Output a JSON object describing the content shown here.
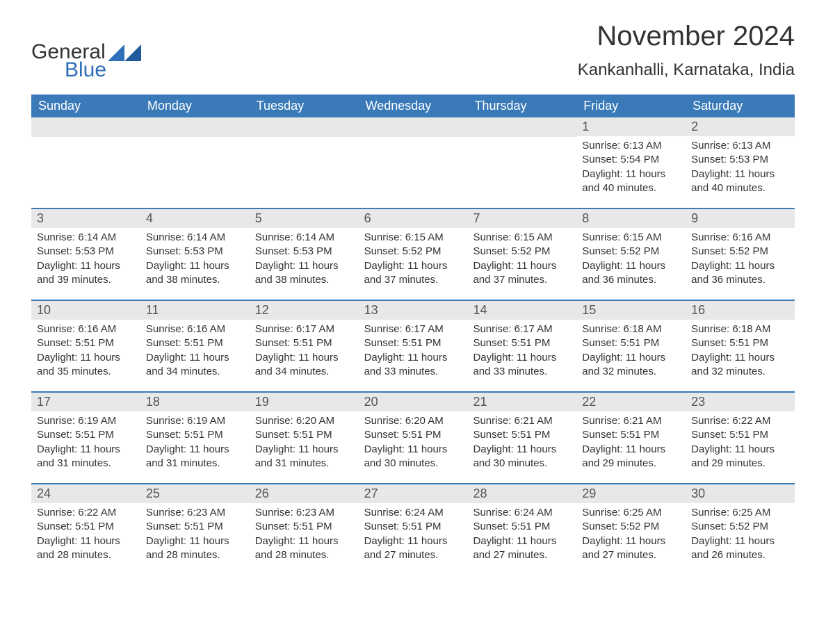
{
  "logo": {
    "general": "General",
    "blue": "Blue",
    "icon_color": "#2d6fb8"
  },
  "title": "November 2024",
  "location": "Kankanhalli, Karnataka, India",
  "colors": {
    "header_bg": "#3a7ab8",
    "header_text": "#ffffff",
    "daynum_bg": "#e8e8e8",
    "border": "#3a7ab8",
    "text": "#333333",
    "logo_blue": "#2d6fb8",
    "background": "#ffffff"
  },
  "fonts": {
    "title_size": 40,
    "location_size": 24,
    "weekday_size": 18,
    "daynum_size": 18,
    "body_size": 15
  },
  "weekdays": [
    "Sunday",
    "Monday",
    "Tuesday",
    "Wednesday",
    "Thursday",
    "Friday",
    "Saturday"
  ],
  "weeks": [
    [
      {
        "day": null
      },
      {
        "day": null
      },
      {
        "day": null
      },
      {
        "day": null
      },
      {
        "day": null
      },
      {
        "day": 1,
        "sunrise": "Sunrise: 6:13 AM",
        "sunset": "Sunset: 5:54 PM",
        "daylight1": "Daylight: 11 hours",
        "daylight2": "and 40 minutes."
      },
      {
        "day": 2,
        "sunrise": "Sunrise: 6:13 AM",
        "sunset": "Sunset: 5:53 PM",
        "daylight1": "Daylight: 11 hours",
        "daylight2": "and 40 minutes."
      }
    ],
    [
      {
        "day": 3,
        "sunrise": "Sunrise: 6:14 AM",
        "sunset": "Sunset: 5:53 PM",
        "daylight1": "Daylight: 11 hours",
        "daylight2": "and 39 minutes."
      },
      {
        "day": 4,
        "sunrise": "Sunrise: 6:14 AM",
        "sunset": "Sunset: 5:53 PM",
        "daylight1": "Daylight: 11 hours",
        "daylight2": "and 38 minutes."
      },
      {
        "day": 5,
        "sunrise": "Sunrise: 6:14 AM",
        "sunset": "Sunset: 5:53 PM",
        "daylight1": "Daylight: 11 hours",
        "daylight2": "and 38 minutes."
      },
      {
        "day": 6,
        "sunrise": "Sunrise: 6:15 AM",
        "sunset": "Sunset: 5:52 PM",
        "daylight1": "Daylight: 11 hours",
        "daylight2": "and 37 minutes."
      },
      {
        "day": 7,
        "sunrise": "Sunrise: 6:15 AM",
        "sunset": "Sunset: 5:52 PM",
        "daylight1": "Daylight: 11 hours",
        "daylight2": "and 37 minutes."
      },
      {
        "day": 8,
        "sunrise": "Sunrise: 6:15 AM",
        "sunset": "Sunset: 5:52 PM",
        "daylight1": "Daylight: 11 hours",
        "daylight2": "and 36 minutes."
      },
      {
        "day": 9,
        "sunrise": "Sunrise: 6:16 AM",
        "sunset": "Sunset: 5:52 PM",
        "daylight1": "Daylight: 11 hours",
        "daylight2": "and 36 minutes."
      }
    ],
    [
      {
        "day": 10,
        "sunrise": "Sunrise: 6:16 AM",
        "sunset": "Sunset: 5:51 PM",
        "daylight1": "Daylight: 11 hours",
        "daylight2": "and 35 minutes."
      },
      {
        "day": 11,
        "sunrise": "Sunrise: 6:16 AM",
        "sunset": "Sunset: 5:51 PM",
        "daylight1": "Daylight: 11 hours",
        "daylight2": "and 34 minutes."
      },
      {
        "day": 12,
        "sunrise": "Sunrise: 6:17 AM",
        "sunset": "Sunset: 5:51 PM",
        "daylight1": "Daylight: 11 hours",
        "daylight2": "and 34 minutes."
      },
      {
        "day": 13,
        "sunrise": "Sunrise: 6:17 AM",
        "sunset": "Sunset: 5:51 PM",
        "daylight1": "Daylight: 11 hours",
        "daylight2": "and 33 minutes."
      },
      {
        "day": 14,
        "sunrise": "Sunrise: 6:17 AM",
        "sunset": "Sunset: 5:51 PM",
        "daylight1": "Daylight: 11 hours",
        "daylight2": "and 33 minutes."
      },
      {
        "day": 15,
        "sunrise": "Sunrise: 6:18 AM",
        "sunset": "Sunset: 5:51 PM",
        "daylight1": "Daylight: 11 hours",
        "daylight2": "and 32 minutes."
      },
      {
        "day": 16,
        "sunrise": "Sunrise: 6:18 AM",
        "sunset": "Sunset: 5:51 PM",
        "daylight1": "Daylight: 11 hours",
        "daylight2": "and 32 minutes."
      }
    ],
    [
      {
        "day": 17,
        "sunrise": "Sunrise: 6:19 AM",
        "sunset": "Sunset: 5:51 PM",
        "daylight1": "Daylight: 11 hours",
        "daylight2": "and 31 minutes."
      },
      {
        "day": 18,
        "sunrise": "Sunrise: 6:19 AM",
        "sunset": "Sunset: 5:51 PM",
        "daylight1": "Daylight: 11 hours",
        "daylight2": "and 31 minutes."
      },
      {
        "day": 19,
        "sunrise": "Sunrise: 6:20 AM",
        "sunset": "Sunset: 5:51 PM",
        "daylight1": "Daylight: 11 hours",
        "daylight2": "and 31 minutes."
      },
      {
        "day": 20,
        "sunrise": "Sunrise: 6:20 AM",
        "sunset": "Sunset: 5:51 PM",
        "daylight1": "Daylight: 11 hours",
        "daylight2": "and 30 minutes."
      },
      {
        "day": 21,
        "sunrise": "Sunrise: 6:21 AM",
        "sunset": "Sunset: 5:51 PM",
        "daylight1": "Daylight: 11 hours",
        "daylight2": "and 30 minutes."
      },
      {
        "day": 22,
        "sunrise": "Sunrise: 6:21 AM",
        "sunset": "Sunset: 5:51 PM",
        "daylight1": "Daylight: 11 hours",
        "daylight2": "and 29 minutes."
      },
      {
        "day": 23,
        "sunrise": "Sunrise: 6:22 AM",
        "sunset": "Sunset: 5:51 PM",
        "daylight1": "Daylight: 11 hours",
        "daylight2": "and 29 minutes."
      }
    ],
    [
      {
        "day": 24,
        "sunrise": "Sunrise: 6:22 AM",
        "sunset": "Sunset: 5:51 PM",
        "daylight1": "Daylight: 11 hours",
        "daylight2": "and 28 minutes."
      },
      {
        "day": 25,
        "sunrise": "Sunrise: 6:23 AM",
        "sunset": "Sunset: 5:51 PM",
        "daylight1": "Daylight: 11 hours",
        "daylight2": "and 28 minutes."
      },
      {
        "day": 26,
        "sunrise": "Sunrise: 6:23 AM",
        "sunset": "Sunset: 5:51 PM",
        "daylight1": "Daylight: 11 hours",
        "daylight2": "and 28 minutes."
      },
      {
        "day": 27,
        "sunrise": "Sunrise: 6:24 AM",
        "sunset": "Sunset: 5:51 PM",
        "daylight1": "Daylight: 11 hours",
        "daylight2": "and 27 minutes."
      },
      {
        "day": 28,
        "sunrise": "Sunrise: 6:24 AM",
        "sunset": "Sunset: 5:51 PM",
        "daylight1": "Daylight: 11 hours",
        "daylight2": "and 27 minutes."
      },
      {
        "day": 29,
        "sunrise": "Sunrise: 6:25 AM",
        "sunset": "Sunset: 5:52 PM",
        "daylight1": "Daylight: 11 hours",
        "daylight2": "and 27 minutes."
      },
      {
        "day": 30,
        "sunrise": "Sunrise: 6:25 AM",
        "sunset": "Sunset: 5:52 PM",
        "daylight1": "Daylight: 11 hours",
        "daylight2": "and 26 minutes."
      }
    ]
  ]
}
